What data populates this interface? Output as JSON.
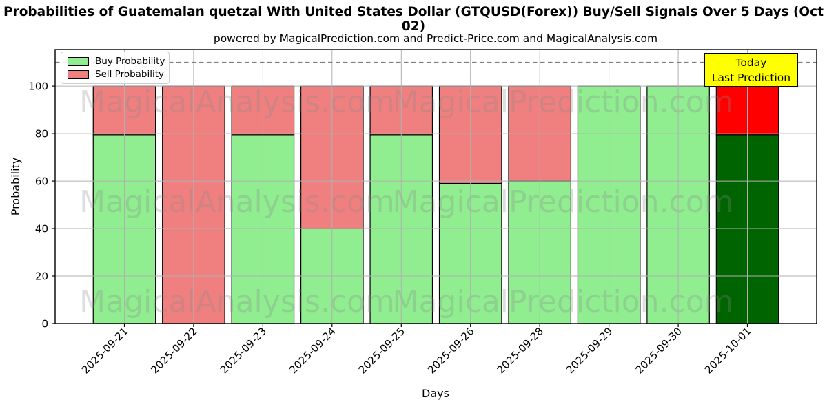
{
  "title": "Probabilities of Guatemalan quetzal With United States Dollar (GTQUSD(Forex)) Buy/Sell Signals Over 5 Days (Oct 02)",
  "subtitle": "powered by MagicalPrediction.com and Predict-Price.com and MagicalAnalysis.com",
  "legend": {
    "items": [
      {
        "label": "Buy Probability",
        "color": "#90ee90"
      },
      {
        "label": "Sell Probability",
        "color": "#f08080"
      }
    ]
  },
  "annotation_box": {
    "line1": "Today",
    "line2": "Last Prediction",
    "bg_color": "#ffff00"
  },
  "watermarks": [
    "MagicalAnalysis.com",
    "MagicalPrediction.com"
  ],
  "colors": {
    "buy": "#90ee90",
    "sell": "#f08080",
    "today_buy": "#006400",
    "today_sell": "#ff0000",
    "grid": "#b0b0b0",
    "dashed_line": "#7f7f7f",
    "bar_edge": "#000000",
    "watermark": "#8a8a8a"
  },
  "chart_data": {
    "type": "bar",
    "stacked": true,
    "title": "Probabilities of Guatemalan quetzal With United States Dollar (GTQUSD(Forex)) Buy/Sell Signals Over 5 Days (Oct 02)",
    "xlabel": "Days",
    "ylabel": "Probability",
    "categories": [
      "2025-09-21",
      "2025-09-22",
      "2025-09-23",
      "2025-09-24",
      "2025-09-25",
      "2025-09-26",
      "2025-09-28",
      "2025-09-29",
      "2025-09-30",
      "2025-10-01"
    ],
    "series": [
      {
        "name": "Buy Probability",
        "color": "#90ee90",
        "values": [
          79.5,
          0,
          79.5,
          40,
          79.5,
          59,
          60,
          100,
          100,
          79.5
        ]
      },
      {
        "name": "Sell Probability",
        "color": "#f08080",
        "values": [
          20.5,
          100,
          20.5,
          60,
          20.5,
          41,
          40,
          0,
          0,
          20.5
        ]
      }
    ],
    "today_index": 9,
    "today_colors": {
      "Buy Probability": "#006400",
      "Sell Probability": "#ff0000"
    },
    "ylim": [
      0,
      115.4
    ],
    "yticks": [
      0,
      20,
      40,
      60,
      80,
      100
    ],
    "dashed_line_y": 110,
    "grid": true,
    "bar_width_fraction": 0.9,
    "legend_position": "upper left"
  }
}
